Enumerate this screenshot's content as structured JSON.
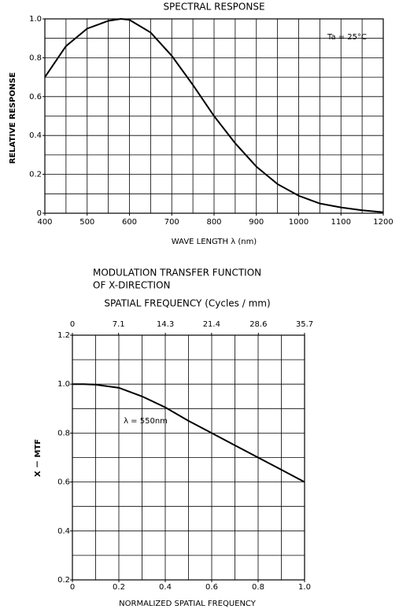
{
  "chart_data": [
    {
      "type": "line",
      "title": "SPECTRAL RESPONSE",
      "xlabel": "WAVE LENGTH  λ   (nm)",
      "ylabel": "RELATIVE RESPONSE",
      "annotation": "Ta = 25°C",
      "xlim": [
        400,
        1200
      ],
      "xticks": [
        400,
        500,
        600,
        700,
        800,
        900,
        1000,
        1100,
        1200
      ],
      "xgrid": [
        450,
        500,
        550,
        600,
        650,
        700,
        750,
        800,
        850,
        900,
        950,
        1000,
        1050,
        1100,
        1150
      ],
      "ylim": [
        0,
        1
      ],
      "yticks": [
        0,
        0.2,
        0.4,
        0.6,
        0.8,
        {
          "value": 1,
          "label": "1.0"
        }
      ],
      "ygrid": [
        0.1,
        0.2,
        0.3,
        0.4,
        0.5,
        0.6,
        0.7,
        0.8,
        0.9
      ],
      "color": "#000000",
      "x": [
        400,
        450,
        500,
        550,
        580,
        600,
        650,
        700,
        750,
        800,
        850,
        900,
        950,
        1000,
        1050,
        1100,
        1150,
        1200
      ],
      "values": [
        0.7,
        0.86,
        0.95,
        0.99,
        1.0,
        0.995,
        0.93,
        0.81,
        0.66,
        0.5,
        0.36,
        0.24,
        0.15,
        0.09,
        0.05,
        0.03,
        0.015,
        0.005
      ]
    },
    {
      "type": "line",
      "title": [
        "MODULATION TRANSFER FUNCTION",
        "OF X-DIRECTION"
      ],
      "x2label": "SPATIAL FREQUENCY   (Cycles / mm)",
      "xlabel": "NORMALIZED SPATIAL FREQUENCY",
      "ylabel": "X － MTF",
      "annotation": "λ = 550nm",
      "xlim": [
        0,
        1
      ],
      "xticks": [
        0,
        0.2,
        0.4,
        0.6,
        0.8,
        {
          "value": 1,
          "label": "1.0"
        }
      ],
      "x2lim": [
        0,
        35.7
      ],
      "x2ticks": [
        0,
        7.1,
        14.3,
        21.4,
        28.6,
        35.7
      ],
      "xgrid": [
        0.1,
        0.2,
        0.3,
        0.4,
        0.5,
        0.6,
        0.7,
        0.8,
        0.9
      ],
      "ylim": [
        0.2,
        1.2
      ],
      "yticks": [
        0.2,
        0.4,
        0.6,
        0.8,
        {
          "value": 1,
          "label": "1.0"
        },
        1.2
      ],
      "ygrid": [
        0.3,
        0.4,
        0.5,
        0.6,
        0.7,
        0.8,
        0.9,
        1.0,
        1.1
      ],
      "color": "#000000",
      "x": [
        0,
        0.05,
        0.1,
        0.2,
        0.3,
        0.4,
        0.5,
        0.6,
        0.7,
        0.8,
        0.9,
        1.0
      ],
      "values": [
        1.0,
        1.0,
        0.998,
        0.985,
        0.95,
        0.905,
        0.85,
        0.8,
        0.75,
        0.7,
        0.65,
        0.6
      ]
    }
  ]
}
